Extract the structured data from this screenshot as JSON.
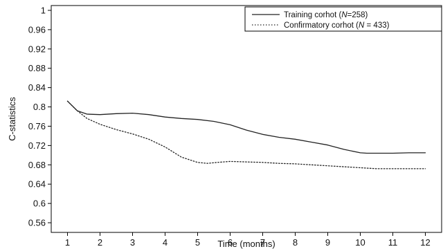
{
  "chart_data": {
    "type": "line",
    "title": "",
    "xlabel": "Time (months)",
    "ylabel": "C-statistics",
    "xlim": [
      0.5,
      12.5
    ],
    "ylim": [
      0.54,
      1.01
    ],
    "xticks": [
      1,
      2,
      3,
      4,
      5,
      6,
      7,
      8,
      9,
      10,
      11,
      12
    ],
    "yticks": [
      0.56,
      0.6,
      0.64,
      0.68,
      0.72,
      0.76,
      0.8,
      0.84,
      0.88,
      0.92,
      0.96,
      1
    ],
    "ytick_labels": [
      "0.56",
      "0.6",
      "0.64",
      "0.68",
      "0.72",
      "0.76",
      "0.8",
      "0.84",
      "0.88",
      "0.92",
      "0.96",
      "1"
    ],
    "grid": false,
    "legend_position": "top-right",
    "series": [
      {
        "name_prefix": "Training corhot (",
        "name_var": "N",
        "name_value": "=258)",
        "style": "solid",
        "color": "#222222",
        "x": [
          1,
          1.3,
          1.6,
          2,
          2.5,
          3,
          3.5,
          4,
          4.5,
          5,
          5.5,
          6,
          6.5,
          7,
          7.5,
          8,
          8.5,
          9,
          9.5,
          10,
          10.2,
          10.5,
          11,
          11.5,
          12
        ],
        "y": [
          0.812,
          0.792,
          0.785,
          0.784,
          0.786,
          0.787,
          0.784,
          0.779,
          0.776,
          0.774,
          0.77,
          0.763,
          0.752,
          0.743,
          0.737,
          0.733,
          0.727,
          0.721,
          0.712,
          0.705,
          0.704,
          0.704,
          0.704,
          0.705,
          0.705
        ]
      },
      {
        "name_prefix": "Confirmatory corhot (",
        "name_var": "N",
        "name_value": " = 433)",
        "style": "dotted",
        "color": "#222222",
        "x": [
          1,
          1.3,
          1.6,
          2,
          2.5,
          3,
          3.5,
          4,
          4.5,
          5,
          5.3,
          5.6,
          6,
          6.5,
          7,
          7.5,
          8,
          8.5,
          9,
          9.5,
          10,
          10.5,
          11,
          11.5,
          12
        ],
        "y": [
          0.812,
          0.792,
          0.776,
          0.764,
          0.753,
          0.744,
          0.733,
          0.717,
          0.696,
          0.685,
          0.683,
          0.685,
          0.687,
          0.686,
          0.685,
          0.683,
          0.682,
          0.68,
          0.678,
          0.676,
          0.674,
          0.672,
          0.672,
          0.672,
          0.672
        ]
      }
    ]
  }
}
